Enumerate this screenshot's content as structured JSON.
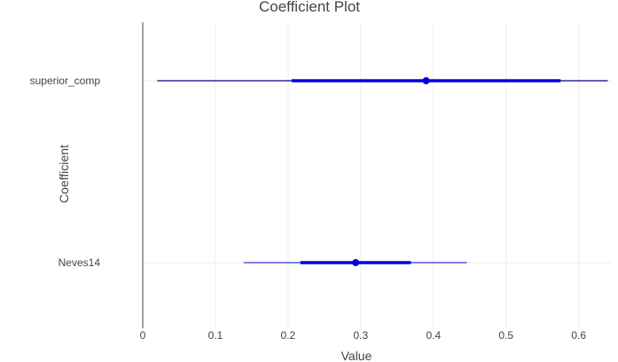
{
  "chart_data": {
    "type": "coefficient-plot",
    "title": "Coefficient Plot",
    "xlabel": "Value",
    "ylabel": "Coefficient",
    "xlim": [
      0,
      0.64
    ],
    "x_ticks": [
      0,
      0.1,
      0.2,
      0.3,
      0.4,
      0.5,
      0.6
    ],
    "x_tick_labels": [
      "0",
      "0.1",
      "0.2",
      "0.3",
      "0.4",
      "0.5",
      "0.6"
    ],
    "grid": true,
    "reference_line_x": 0,
    "color": "#0000dd",
    "coefficients": [
      {
        "name": "superior_comp",
        "estimate": 0.39,
        "inner": [
          0.205,
          0.575
        ],
        "outer": [
          0.02,
          0.64
        ]
      },
      {
        "name": "Neves14",
        "estimate": 0.293,
        "inner": [
          0.217,
          0.369
        ],
        "outer": [
          0.139,
          0.446
        ]
      }
    ]
  }
}
